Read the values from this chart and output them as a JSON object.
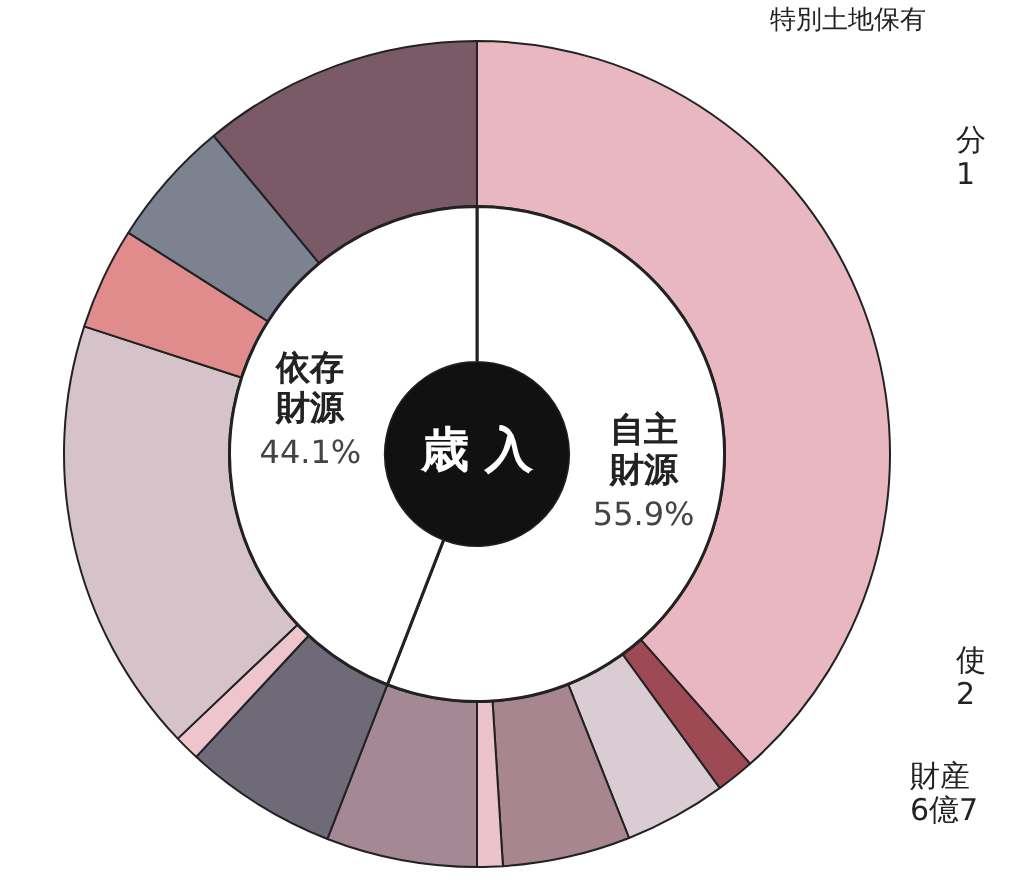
{
  "chart_data": [
    {
      "type": "donut",
      "legend": false,
      "categories": [
        null,
        null,
        null,
        null,
        null,
        null,
        null,
        null,
        null,
        null,
        null,
        null
      ],
      "values": [
        38.5,
        1.5,
        4,
        5,
        1,
        5.9,
        6,
        1,
        17.1,
        4,
        5,
        11
      ],
      "colors": [
        "#e9b7c1",
        "#9e4a55",
        "#d9ccd2",
        "#a8868f",
        "#ecc3ca",
        "#a48994",
        "#6e6a78",
        "#eec5cc",
        "#d6c3ca",
        "#e08c8c",
        "#7d8290",
        "#7a5a66"
      ],
      "annotations": [
        "特別土地保有",
        "分\n1",
        "使\n2",
        "財産\n6億7"
      ]
    },
    {
      "type": "donut",
      "title": "歳 入",
      "legend": false,
      "categories": [
        "自主財源",
        "依存財源"
      ],
      "values": [
        55.9,
        44.1
      ],
      "value_labels": [
        "55.9%",
        "44.1%"
      ],
      "colors": [
        "#ffffff",
        "#ffffff"
      ]
    }
  ]
}
